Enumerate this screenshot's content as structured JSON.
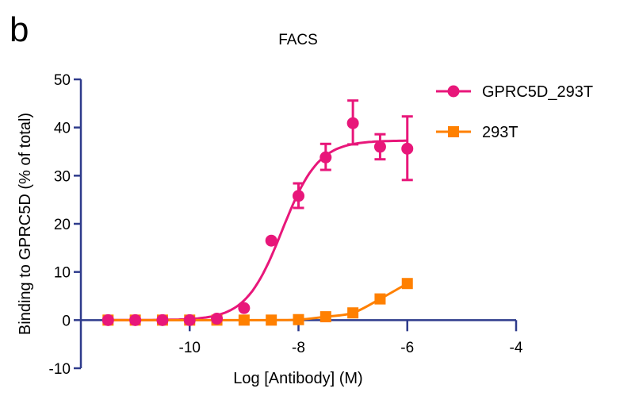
{
  "panel_label": "b",
  "chart_data": {
    "type": "scatter",
    "title": "FACS",
    "xlabel": "Log [Antibody] (M)",
    "ylabel": "Binding to GPRC5D (% of total)",
    "xlim": [
      -12,
      -4
    ],
    "ylim": [
      -10,
      50
    ],
    "xticks": [
      -10,
      -8,
      -6,
      -4
    ],
    "yticks": [
      -10,
      0,
      10,
      20,
      30,
      40,
      50
    ],
    "grid": false,
    "legend_position": "top-right",
    "x": [
      -11.5,
      -11,
      -10.5,
      -10,
      -9.5,
      -9,
      -8.5,
      -8,
      -7.5,
      -7,
      -6.5,
      -6
    ],
    "series": [
      {
        "name": "GPRC5D_293T",
        "marker": "circle",
        "color": "#E8177A",
        "values": [
          0,
          0,
          0,
          0,
          0.3,
          2.5,
          16.5,
          25.8,
          33.8,
          40.9,
          36.0,
          35.6
        ],
        "error_low": [
          null,
          null,
          null,
          null,
          null,
          null,
          null,
          23.3,
          31.2,
          36.5,
          33.4,
          29.1
        ],
        "error_high": [
          null,
          null,
          null,
          null,
          null,
          null,
          null,
          28.4,
          36.6,
          45.6,
          38.6,
          42.3
        ],
        "fit": {
          "bottom": 0,
          "top": 37.3,
          "logEC50": -8.3,
          "hill": 1.3
        }
      },
      {
        "name": "293T",
        "marker": "square",
        "color": "#FF8000",
        "values": [
          0,
          0,
          0,
          0,
          0,
          0,
          0,
          0.1,
          0.7,
          1.5,
          4.4,
          7.6
        ]
      }
    ],
    "axis_color": "#2E3B8C"
  }
}
